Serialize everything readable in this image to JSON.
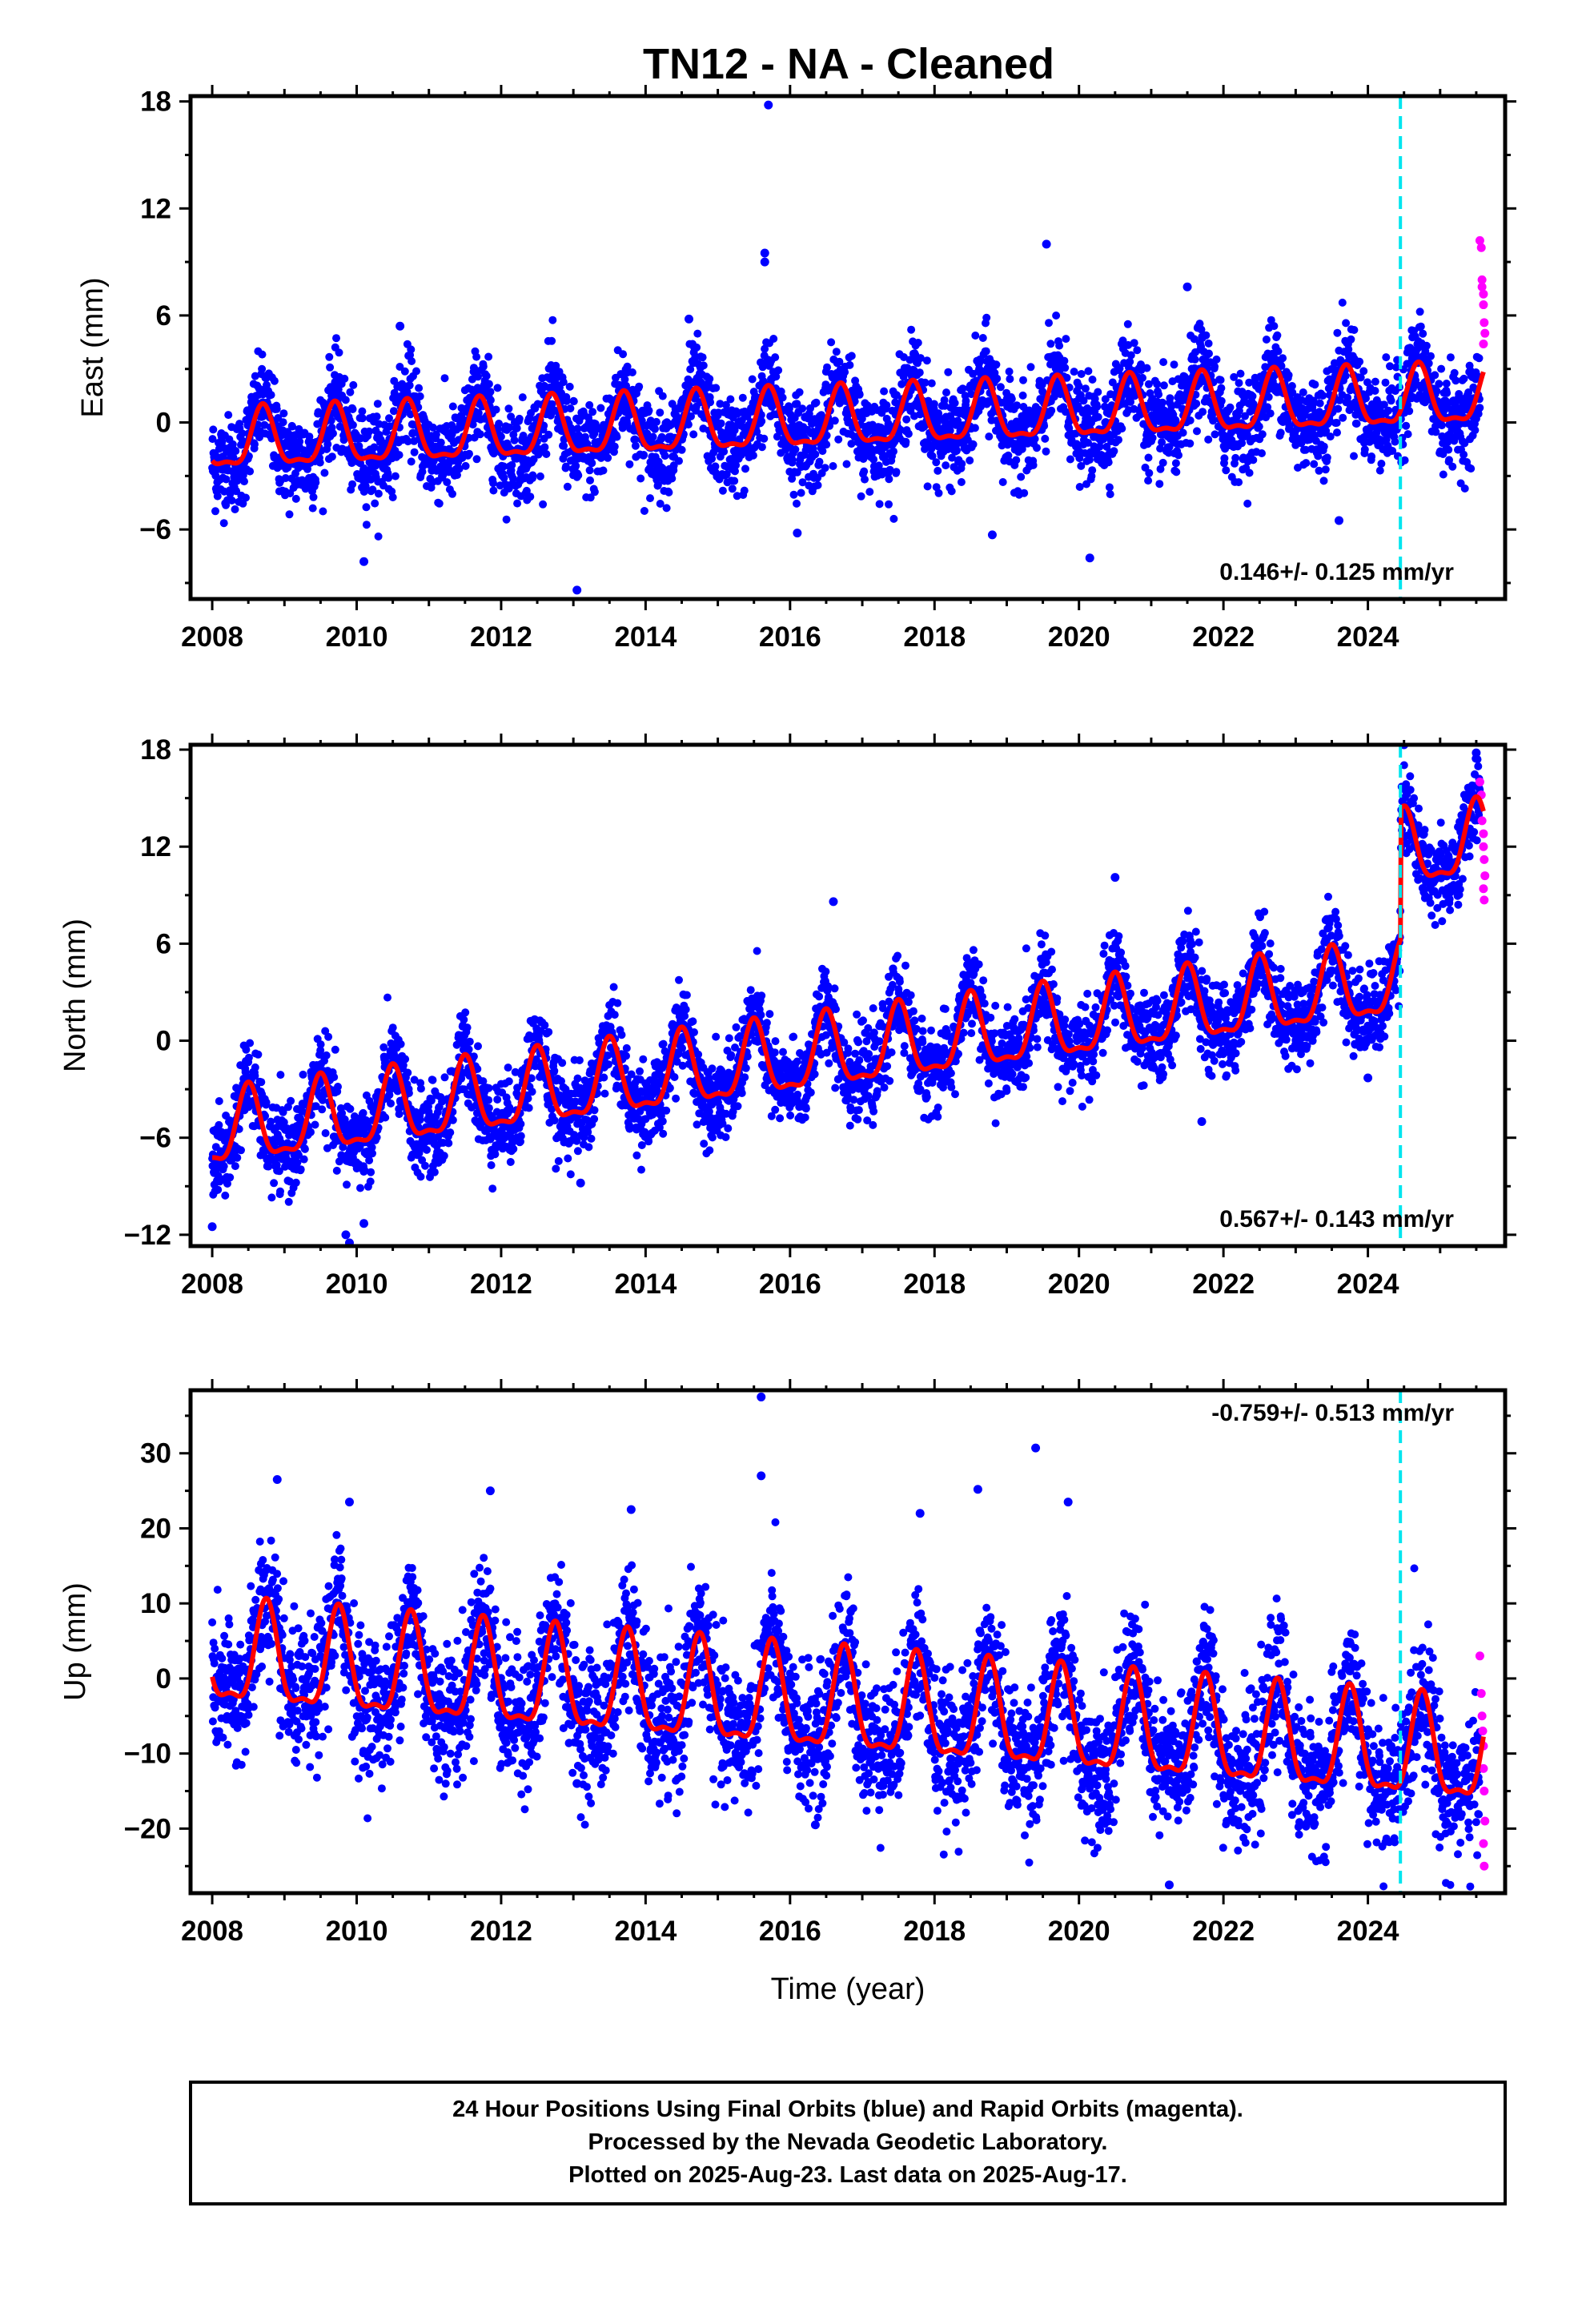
{
  "title": "TN12  - NA - Cleaned",
  "colors": {
    "final_points": "#0000ff",
    "rapid_points": "#ff00ff",
    "model_line": "#ff0000",
    "event_line": "#00e5ee",
    "frame": "#000000"
  },
  "caption": {
    "line1": "24 Hour Positions Using Final Orbits (blue) and Rapid Orbits (magenta).",
    "line2": "Processed by the Nevada Geodetic Laboratory.",
    "line3": "Plotted on 2025-Aug-23. Last data on 2025-Aug-17."
  },
  "chart_data": [
    {
      "type": "scatter",
      "ylabel": "East (mm)",
      "xlabel": "",
      "xlim": [
        2007.7,
        2025.9
      ],
      "ylim": [
        -9.9,
        18.3
      ],
      "xticks": [
        "2008",
        "2010",
        "2012",
        "2014",
        "2016",
        "2018",
        "2020",
        "2022",
        "2024"
      ],
      "yticks": [
        "−6",
        "0",
        "6",
        "12",
        "18"
      ],
      "ytick_values": [
        -6,
        0,
        6,
        12,
        18
      ],
      "rate_text": "0.146+/- 0.125 mm/yr",
      "rate_position": "bottom-right",
      "event_line_year": 2024.45,
      "trend": {
        "rate": 0.146,
        "offset_at_2008": -1.2,
        "annual_amplitude": 1.6,
        "annual_peak_fraction": 0.7,
        "scatter": 1.3,
        "step_at_event": 0.0
      },
      "outliers": [
        [
          2015.7,
          17.8
        ],
        [
          2015.65,
          9.5
        ],
        [
          2015.65,
          9.0
        ],
        [
          2019.55,
          10.0
        ],
        [
          2013.05,
          -9.4
        ],
        [
          2010.1,
          -7.8
        ],
        [
          2020.15,
          -7.6
        ],
        [
          2018.8,
          -6.3
        ],
        [
          2016.1,
          -6.2
        ],
        [
          2021.5,
          7.6
        ],
        [
          2014.6,
          5.8
        ],
        [
          2010.6,
          5.4
        ],
        [
          2023.6,
          -5.5
        ]
      ],
      "rapid_points": [
        [
          2025.55,
          10.2
        ],
        [
          2025.57,
          9.8
        ],
        [
          2025.58,
          7.6
        ],
        [
          2025.6,
          7.2
        ],
        [
          2025.6,
          6.6
        ],
        [
          2025.61,
          5.6
        ],
        [
          2025.62,
          5.0
        ],
        [
          2025.58,
          8.0
        ],
        [
          2025.6,
          4.4
        ]
      ]
    },
    {
      "type": "scatter",
      "ylabel": "North (mm)",
      "xlabel": "",
      "xlim": [
        2007.7,
        2025.9
      ],
      "ylim": [
        -12.7,
        18.3
      ],
      "xticks": [
        "2008",
        "2010",
        "2012",
        "2014",
        "2016",
        "2018",
        "2020",
        "2022",
        "2024"
      ],
      "yticks": [
        "−12",
        "−6",
        "0",
        "6",
        "12",
        "18"
      ],
      "ytick_values": [
        -12,
        -6,
        0,
        6,
        12,
        18
      ],
      "rate_text": "0.567+/- 0.143 mm/yr",
      "rate_position": "bottom-right",
      "event_line_year": 2024.45,
      "trend": {
        "rate": 0.567,
        "offset_at_2008": -5.8,
        "annual_amplitude": 2.2,
        "annual_peak_fraction": 0.5,
        "scatter": 1.3,
        "step_at_event": 8.0
      },
      "outliers": [
        [
          2008.0,
          -11.5
        ],
        [
          2009.85,
          -12.0
        ],
        [
          2009.9,
          -12.5
        ],
        [
          2010.1,
          -11.3
        ],
        [
          2016.6,
          8.6
        ],
        [
          2020.5,
          10.1
        ],
        [
          2021.7,
          -5.0
        ],
        [
          2024.5,
          18.3
        ],
        [
          2025.5,
          17.8
        ],
        [
          2013.1,
          -8.8
        ],
        [
          2024.0,
          -2.3
        ]
      ],
      "rapid_points": [
        [
          2025.55,
          16.0
        ],
        [
          2025.57,
          15.2
        ],
        [
          2025.58,
          13.6
        ],
        [
          2025.6,
          12.8
        ],
        [
          2025.6,
          12.0
        ],
        [
          2025.61,
          11.2
        ],
        [
          2025.62,
          10.2
        ],
        [
          2025.6,
          9.4
        ],
        [
          2025.61,
          8.7
        ]
      ]
    },
    {
      "type": "scatter",
      "ylabel": "Up (mm)",
      "xlabel": "Time (year)",
      "xlim": [
        2007.7,
        2025.9
      ],
      "ylim": [
        -28.6,
        38.4
      ],
      "xticks": [
        "2008",
        "2010",
        "2012",
        "2014",
        "2016",
        "2018",
        "2020",
        "2022",
        "2024"
      ],
      "yticks": [
        "−20",
        "−10",
        "0",
        "10",
        "20",
        "30"
      ],
      "ytick_values": [
        -20,
        -10,
        0,
        10,
        20,
        30
      ],
      "rate_text": "-0.759+/- 0.513 mm/yr",
      "rate_position": "top-right",
      "event_line_year": 2024.45,
      "trend": {
        "rate": -0.759,
        "offset_at_2008": 2.5,
        "annual_amplitude": 6.5,
        "annual_peak_fraction": 0.75,
        "scatter": 4.5,
        "step_at_event": 0.0
      },
      "outliers": [
        [
          2015.6,
          37.5
        ],
        [
          2015.6,
          27.0
        ],
        [
          2019.4,
          30.7
        ],
        [
          2019.85,
          23.5
        ],
        [
          2011.85,
          25.0
        ],
        [
          2017.8,
          22.0
        ],
        [
          2018.6,
          25.2
        ],
        [
          2013.8,
          22.5
        ],
        [
          2009.9,
          23.5
        ],
        [
          2008.9,
          26.5
        ],
        [
          2021.25,
          -27.5
        ],
        [
          2020.4,
          -19.0
        ],
        [
          2016.35,
          -19.5
        ],
        [
          2013.05,
          -14.0
        ]
      ],
      "rapid_points": [
        [
          2025.55,
          3.0
        ],
        [
          2025.57,
          -2.0
        ],
        [
          2025.58,
          -5.0
        ],
        [
          2025.6,
          -9.0
        ],
        [
          2025.6,
          -12.0
        ],
        [
          2025.61,
          -15.0
        ],
        [
          2025.62,
          -19.0
        ],
        [
          2025.6,
          -22.0
        ],
        [
          2025.61,
          -25.0
        ],
        [
          2025.59,
          -7.0
        ]
      ]
    }
  ]
}
